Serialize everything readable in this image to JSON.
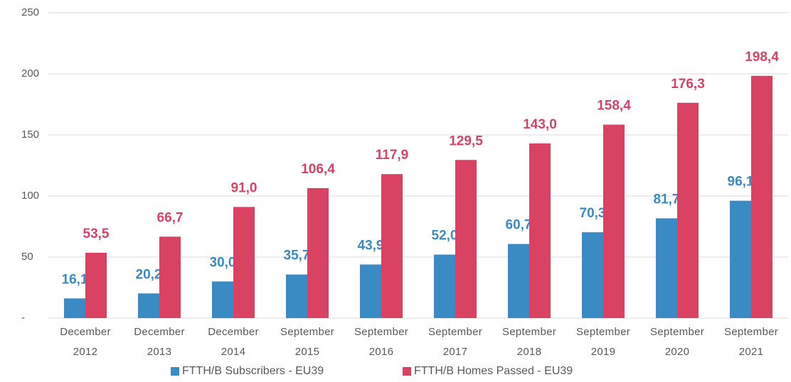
{
  "chart_data": {
    "type": "bar",
    "categories": [
      "December 2012",
      "December 2013",
      "December 2014",
      "September 2015",
      "September 2016",
      "September 2017",
      "September 2018",
      "September 2019",
      "September 2020",
      "September 2021"
    ],
    "series": [
      {
        "name": "FTTH/B Subscribers - EU39",
        "color": "#3a8ac4",
        "values": [
          16.1,
          20.2,
          30.0,
          35.7,
          43.9,
          52.0,
          60.7,
          70.3,
          81.7,
          96.1
        ],
        "value_labels": [
          "16,1",
          "20,2",
          "30,0",
          "35,7",
          "43,9",
          "52,0",
          "60,7",
          "70,3",
          "81,7",
          "96,1"
        ]
      },
      {
        "name": "FTTH/B Homes Passed - EU39",
        "color": "#d94263",
        "values": [
          53.5,
          66.7,
          91.0,
          106.4,
          117.9,
          129.5,
          143.0,
          158.4,
          176.3,
          198.4
        ],
        "value_labels": [
          "53,5",
          "66,7",
          "91,0",
          "106,4",
          "117,9",
          "129,5",
          "143,0",
          "158,4",
          "176,3",
          "198,4"
        ]
      }
    ],
    "ylim": [
      0,
      250
    ],
    "yticks": [
      {
        "value": 0,
        "label": "-"
      },
      50,
      100,
      150,
      200,
      250
    ],
    "grid": true,
    "legend": "bottom"
  }
}
